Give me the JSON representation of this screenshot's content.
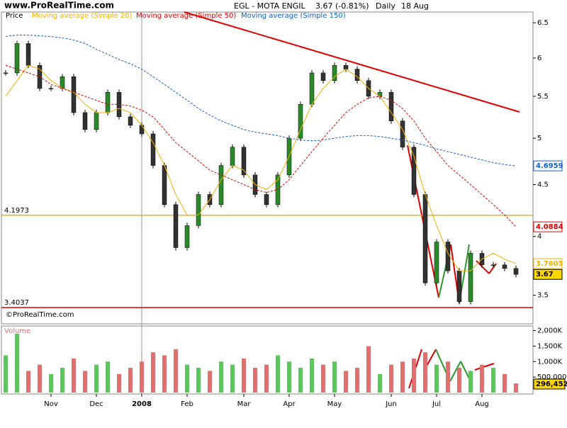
{
  "header": {
    "site": "www.ProRealTime.com",
    "symbol": "EGL - MOTA ENGIL",
    "quote": "3.67 (-0.81%)",
    "period": "Daily",
    "date": "18 Aug",
    "copyright": "©ProRealTime.com"
  },
  "chart_data": [
    {
      "type": "candlestick",
      "log_scale": true,
      "ylim": [
        3.28,
        6.66
      ],
      "yticks": [
        6.5,
        6,
        5.5,
        5,
        4.5,
        4,
        3.5
      ],
      "up_color": "#2a8a2a",
      "down_color": "#333333",
      "series": [
        {
          "name": "Price",
          "color": "#000000",
          "values": [
            5.8,
            6.2,
            5.9,
            5.6,
            5.6,
            5.75,
            5.3,
            5.1,
            5.3,
            5.55,
            5.25,
            5.15,
            5.05,
            4.7,
            4.3,
            3.9,
            4.1,
            4.4,
            4.3,
            4.7,
            4.9,
            4.6,
            4.4,
            4.3,
            4.6,
            5.0,
            5.4,
            5.8,
            5.7,
            5.9,
            5.85,
            5.7,
            5.5,
            5.55,
            5.2,
            4.9,
            4.4,
            3.6,
            3.95,
            3.7,
            3.45,
            3.85,
            3.75,
            3.75,
            3.72,
            3.67
          ]
        },
        {
          "name": "Moving average (Simple 20)",
          "color": "#f0b000",
          "style": "solid",
          "values": [
            5.5,
            5.7,
            5.9,
            5.85,
            5.7,
            5.6,
            5.55,
            5.4,
            5.3,
            5.3,
            5.35,
            5.3,
            5.15,
            4.95,
            4.7,
            4.4,
            4.2,
            4.2,
            4.35,
            4.55,
            4.7,
            4.65,
            4.5,
            4.45,
            4.55,
            4.8,
            5.1,
            5.4,
            5.6,
            5.75,
            5.85,
            5.75,
            5.6,
            5.5,
            5.3,
            5.1,
            4.8,
            4.4,
            4.1,
            3.85,
            3.7,
            3.7,
            3.8,
            3.85,
            3.8,
            3.7605
          ]
        },
        {
          "name": "Moving average (Simple 50)",
          "color": "#e00000",
          "style": "dashed",
          "values": [
            5.9,
            5.85,
            5.8,
            5.75,
            5.65,
            5.6,
            5.55,
            5.5,
            5.45,
            5.4,
            5.4,
            5.38,
            5.33,
            5.25,
            5.1,
            4.95,
            4.85,
            4.75,
            4.65,
            4.6,
            4.55,
            4.5,
            4.45,
            4.42,
            4.45,
            4.55,
            4.7,
            4.85,
            5.0,
            5.15,
            5.3,
            5.4,
            5.48,
            5.5,
            5.45,
            5.35,
            5.2,
            5.0,
            4.85,
            4.7,
            4.6,
            4.5,
            4.4,
            4.3,
            4.2,
            4.0884
          ]
        },
        {
          "name": "Moving average (Simple 150)",
          "color": "#1060d0",
          "style": "dashed",
          "values": [
            6.3,
            6.32,
            6.32,
            6.31,
            6.3,
            6.28,
            6.25,
            6.2,
            6.12,
            6.05,
            5.98,
            5.92,
            5.85,
            5.75,
            5.65,
            5.55,
            5.45,
            5.35,
            5.27,
            5.2,
            5.15,
            5.1,
            5.07,
            5.05,
            5.03,
            5.0,
            4.98,
            4.97,
            4.98,
            5.0,
            5.02,
            5.03,
            5.03,
            5.02,
            5.0,
            4.98,
            4.95,
            4.92,
            4.88,
            4.85,
            4.82,
            4.79,
            4.76,
            4.73,
            4.71,
            4.6959
          ]
        }
      ],
      "hlines": [
        {
          "value": 4.1973,
          "color": "#f0b000"
        },
        {
          "value": 3.4037,
          "color": "#e00000"
        }
      ]
    },
    {
      "type": "bar",
      "title": "Volume",
      "ylim": [
        0,
        2150000
      ],
      "up_color": "#5cc85c",
      "down_color": "#e07070",
      "yticks": [
        {
          "value": 2000000,
          "label": "2,000K"
        },
        {
          "value": 1500000,
          "label": "1,500K"
        },
        {
          "value": 1000000,
          "label": "1,000K"
        },
        {
          "value": 500000,
          "label": "500,000"
        }
      ],
      "categories": [
        null,
        null,
        null,
        null,
        "Nov",
        null,
        null,
        null,
        "Dec",
        null,
        null,
        null,
        "2008",
        null,
        null,
        null,
        "Feb",
        null,
        null,
        null,
        null,
        "Mar",
        null,
        null,
        null,
        "Apr",
        null,
        null,
        null,
        "May",
        null,
        null,
        null,
        null,
        "Jun",
        null,
        null,
        null,
        "Jul",
        null,
        null,
        null,
        "Aug",
        null,
        null,
        null
      ],
      "values": [
        1200000,
        1900000,
        700000,
        900000,
        600000,
        800000,
        1100000,
        700000,
        900000,
        1000000,
        600000,
        800000,
        1000000,
        1300000,
        1200000,
        1400000,
        900000,
        800000,
        700000,
        1000000,
        900000,
        1100000,
        800000,
        900000,
        1200000,
        1000000,
        800000,
        1100000,
        900000,
        1000000,
        700000,
        800000,
        1500000,
        600000,
        900000,
        1000000,
        1100000,
        1300000,
        900000,
        1000000,
        800000,
        700000,
        900000,
        800000,
        600000,
        296452
      ],
      "value_labels": [
        null,
        null,
        null,
        null,
        null,
        null,
        null,
        null,
        null,
        null,
        null,
        null,
        null,
        null,
        null,
        null,
        null,
        null,
        null,
        null,
        null,
        null,
        null,
        null,
        null,
        null,
        null,
        null,
        null,
        null,
        null,
        null,
        null,
        null,
        null,
        null,
        null,
        null,
        null,
        null,
        null,
        null,
        null,
        null,
        null,
        "296,452"
      ]
    }
  ]
}
